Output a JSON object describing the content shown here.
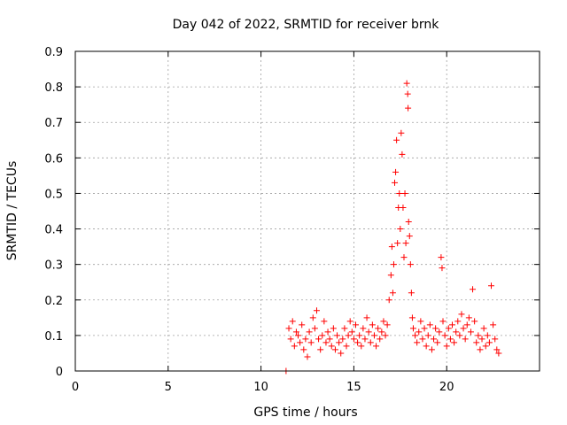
{
  "chart_data": {
    "type": "scatter",
    "title": "Day 042 of 2022, SRMTID for receiver brnk",
    "xlabel": "GPS time / hours",
    "ylabel": "SRMTID / TECUs",
    "xlim": [
      0,
      25
    ],
    "ylim": [
      0,
      0.9
    ],
    "xticks": [
      "0",
      "5",
      "10",
      "15",
      "20"
    ],
    "yticks": [
      "0",
      "0.1",
      "0.2",
      "0.3",
      "0.4",
      "0.5",
      "0.6",
      "0.7",
      "0.8",
      "0.9"
    ],
    "grid": true,
    "marker": "plus",
    "color": "#ff0000",
    "series": [
      {
        "name": "SRMTID",
        "points": [
          [
            11.35,
            0.0
          ],
          [
            11.5,
            0.12
          ],
          [
            11.6,
            0.09
          ],
          [
            11.7,
            0.14
          ],
          [
            11.8,
            0.07
          ],
          [
            11.9,
            0.11
          ],
          [
            12.0,
            0.1
          ],
          [
            12.1,
            0.08
          ],
          [
            12.2,
            0.13
          ],
          [
            12.3,
            0.06
          ],
          [
            12.4,
            0.09
          ],
          [
            12.5,
            0.04
          ],
          [
            12.6,
            0.11
          ],
          [
            12.7,
            0.08
          ],
          [
            12.8,
            0.15
          ],
          [
            12.9,
            0.12
          ],
          [
            13.0,
            0.17
          ],
          [
            13.1,
            0.09
          ],
          [
            13.2,
            0.06
          ],
          [
            13.3,
            0.1
          ],
          [
            13.4,
            0.14
          ],
          [
            13.5,
            0.08
          ],
          [
            13.6,
            0.11
          ],
          [
            13.7,
            0.09
          ],
          [
            13.8,
            0.07
          ],
          [
            13.9,
            0.12
          ],
          [
            14.0,
            0.06
          ],
          [
            14.1,
            0.1
          ],
          [
            14.2,
            0.08
          ],
          [
            14.3,
            0.05
          ],
          [
            14.4,
            0.09
          ],
          [
            14.5,
            0.12
          ],
          [
            14.6,
            0.07
          ],
          [
            14.7,
            0.1
          ],
          [
            14.8,
            0.14
          ],
          [
            14.9,
            0.11
          ],
          [
            15.0,
            0.09
          ],
          [
            15.1,
            0.13
          ],
          [
            15.2,
            0.08
          ],
          [
            15.3,
            0.1
          ],
          [
            15.4,
            0.07
          ],
          [
            15.5,
            0.12
          ],
          [
            15.6,
            0.09
          ],
          [
            15.7,
            0.15
          ],
          [
            15.8,
            0.11
          ],
          [
            15.9,
            0.08
          ],
          [
            16.0,
            0.13
          ],
          [
            16.1,
            0.1
          ],
          [
            16.2,
            0.07
          ],
          [
            16.3,
            0.12
          ],
          [
            16.4,
            0.09
          ],
          [
            16.5,
            0.11
          ],
          [
            16.6,
            0.14
          ],
          [
            16.7,
            0.1
          ],
          [
            16.8,
            0.13
          ],
          [
            16.9,
            0.2
          ],
          [
            17.0,
            0.27
          ],
          [
            17.05,
            0.35
          ],
          [
            17.1,
            0.22
          ],
          [
            17.15,
            0.3
          ],
          [
            17.2,
            0.53
          ],
          [
            17.25,
            0.56
          ],
          [
            17.3,
            0.65
          ],
          [
            17.35,
            0.36
          ],
          [
            17.4,
            0.46
          ],
          [
            17.45,
            0.5
          ],
          [
            17.5,
            0.4
          ],
          [
            17.55,
            0.67
          ],
          [
            17.6,
            0.61
          ],
          [
            17.65,
            0.46
          ],
          [
            17.7,
            0.32
          ],
          [
            17.75,
            0.5
          ],
          [
            17.8,
            0.36
          ],
          [
            17.85,
            0.81
          ],
          [
            17.9,
            0.78
          ],
          [
            17.92,
            0.74
          ],
          [
            17.95,
            0.42
          ],
          [
            18.0,
            0.38
          ],
          [
            18.05,
            0.3
          ],
          [
            18.1,
            0.22
          ],
          [
            18.15,
            0.15
          ],
          [
            18.2,
            0.12
          ],
          [
            18.3,
            0.1
          ],
          [
            18.4,
            0.08
          ],
          [
            18.5,
            0.11
          ],
          [
            18.6,
            0.14
          ],
          [
            18.7,
            0.09
          ],
          [
            18.8,
            0.12
          ],
          [
            18.9,
            0.07
          ],
          [
            19.0,
            0.1
          ],
          [
            19.1,
            0.13
          ],
          [
            19.2,
            0.06
          ],
          [
            19.3,
            0.09
          ],
          [
            19.4,
            0.12
          ],
          [
            19.5,
            0.08
          ],
          [
            19.6,
            0.11
          ],
          [
            19.7,
            0.32
          ],
          [
            19.75,
            0.29
          ],
          [
            19.8,
            0.14
          ],
          [
            19.9,
            0.1
          ],
          [
            20.0,
            0.07
          ],
          [
            20.1,
            0.12
          ],
          [
            20.2,
            0.09
          ],
          [
            20.3,
            0.13
          ],
          [
            20.4,
            0.08
          ],
          [
            20.5,
            0.11
          ],
          [
            20.6,
            0.14
          ],
          [
            20.7,
            0.1
          ],
          [
            20.8,
            0.16
          ],
          [
            20.9,
            0.12
          ],
          [
            21.0,
            0.09
          ],
          [
            21.1,
            0.13
          ],
          [
            21.2,
            0.15
          ],
          [
            21.3,
            0.11
          ],
          [
            21.4,
            0.23
          ],
          [
            21.5,
            0.14
          ],
          [
            21.6,
            0.08
          ],
          [
            21.7,
            0.1
          ],
          [
            21.8,
            0.06
          ],
          [
            21.9,
            0.09
          ],
          [
            22.0,
            0.12
          ],
          [
            22.1,
            0.07
          ],
          [
            22.2,
            0.1
          ],
          [
            22.3,
            0.08
          ],
          [
            22.4,
            0.24
          ],
          [
            22.5,
            0.13
          ],
          [
            22.6,
            0.09
          ],
          [
            22.7,
            0.06
          ],
          [
            22.8,
            0.05
          ]
        ]
      }
    ]
  }
}
